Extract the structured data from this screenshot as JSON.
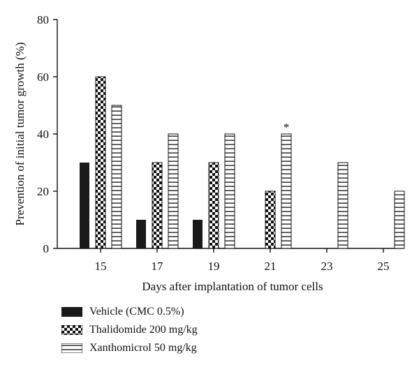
{
  "chart_data": {
    "type": "bar",
    "categories": [
      "15",
      "17",
      "19",
      "21",
      "23",
      "25"
    ],
    "series": [
      {
        "name": "Vehicle (CMC 0.5%)",
        "values": [
          30,
          10,
          10,
          0,
          0,
          0
        ],
        "pattern": "solid",
        "color": "#1a1a1a"
      },
      {
        "name": "Thalidomide 200 mg/kg",
        "values": [
          60,
          30,
          30,
          20,
          0,
          0
        ],
        "pattern": "checker",
        "color": "#111111"
      },
      {
        "name": "Xanthomicrol 50 mg/kg",
        "values": [
          50,
          40,
          40,
          40,
          30,
          20
        ],
        "pattern": "hstripe",
        "color": "#111111"
      }
    ],
    "title": "",
    "xlabel": "Days after implantation of tumor cells",
    "ylabel": "Prevention of initial tumor growth (%)",
    "ylim": [
      0,
      80
    ],
    "yticks": [
      "0",
      "20",
      "40",
      "60",
      "80"
    ],
    "grid": false,
    "legend_position": "bottom-left",
    "annotations": [
      {
        "text": "*",
        "category": "21",
        "series": "Xanthomicrol 50 mg/kg"
      }
    ]
  }
}
